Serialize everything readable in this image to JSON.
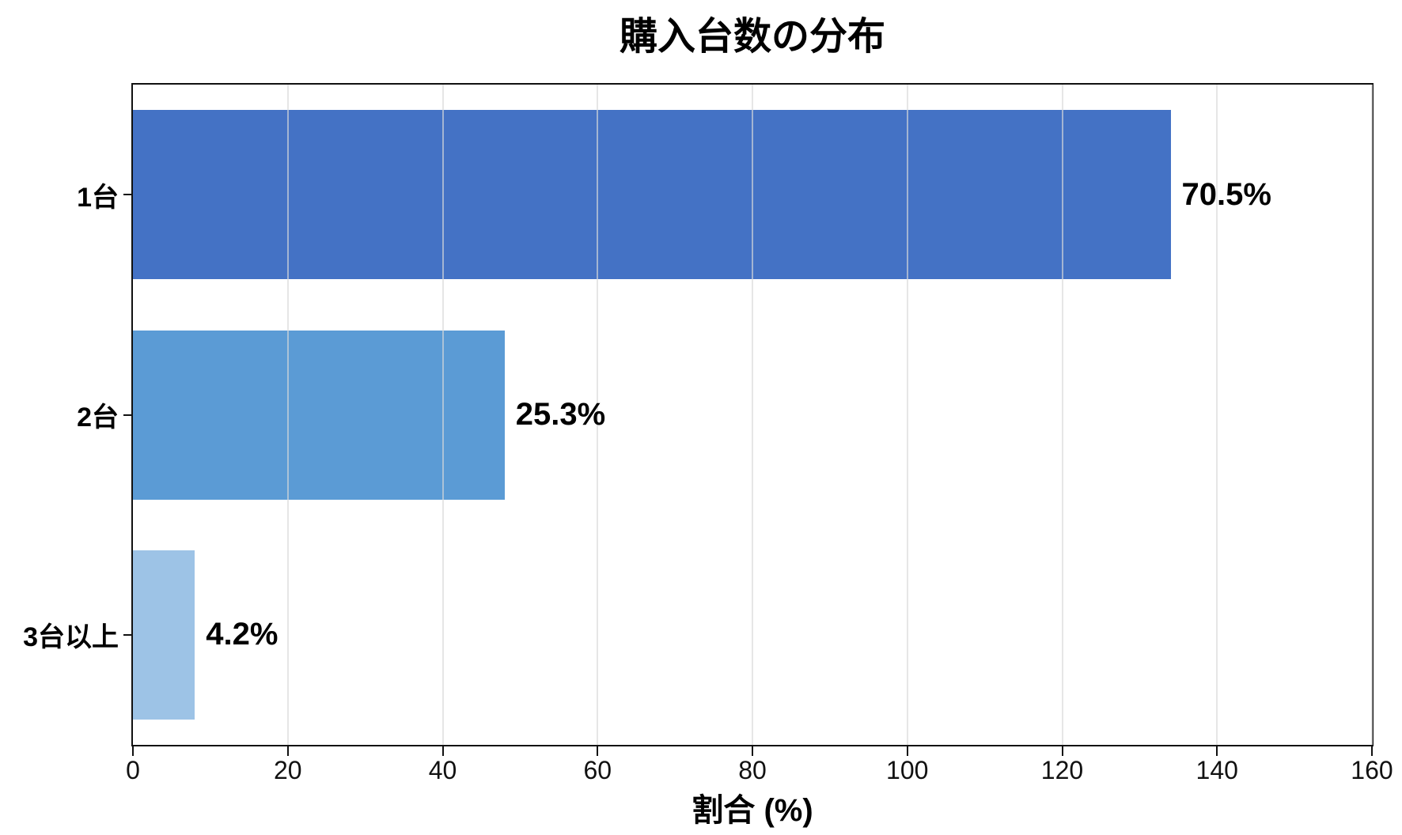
{
  "chart_data": {
    "type": "bar",
    "orientation": "horizontal",
    "title": "購入台数の分布",
    "xlabel": "割合 (%)",
    "ylabel": "",
    "categories": [
      "1台",
      "2台",
      "3台以上"
    ],
    "values": [
      134,
      48,
      8
    ],
    "value_labels": [
      "70.5%",
      "25.3%",
      "4.2%"
    ],
    "percentages": [
      70.5,
      25.3,
      4.2
    ],
    "bar_colors": [
      "#4472C5",
      "#5B9BD5",
      "#9DC3E6"
    ],
    "xlim": [
      0,
      160
    ],
    "xticks": [
      0,
      20,
      40,
      60,
      80,
      100,
      120,
      140,
      160
    ],
    "grid": "vertical-light-gridlines-over-bars",
    "gridline_color": "#D8D8D8",
    "spine_color": "#111111",
    "text_color": "#000000",
    "legend": "none"
  }
}
